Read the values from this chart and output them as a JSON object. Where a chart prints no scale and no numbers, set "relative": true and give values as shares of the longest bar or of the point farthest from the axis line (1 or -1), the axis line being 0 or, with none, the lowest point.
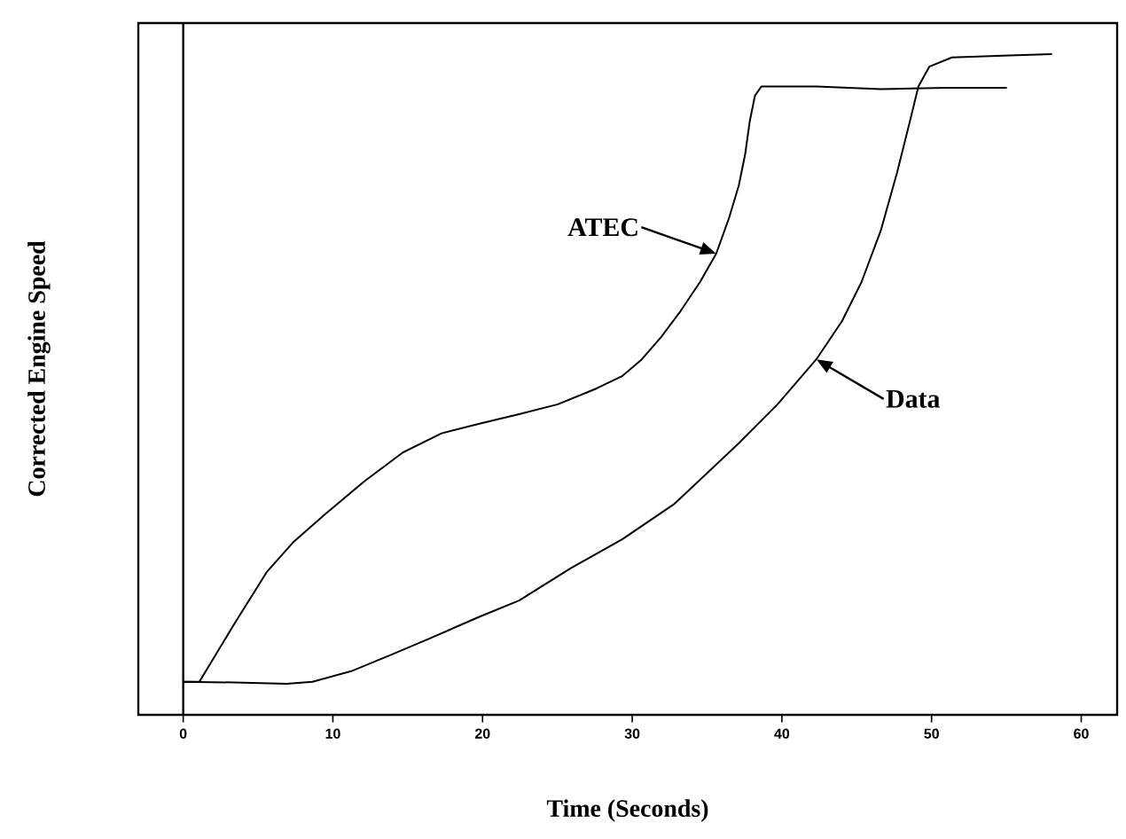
{
  "chart_data": {
    "type": "line",
    "xlabel": "Time (Seconds)",
    "ylabel": "Corrected Engine Speed",
    "relative": true,
    "xlim": [
      -3,
      62.4
    ],
    "xticks": [
      0,
      10,
      20,
      30,
      40,
      50,
      60
    ],
    "tick_labels": "x",
    "grid": false,
    "marker": "none",
    "line_style": "solid",
    "ref_lines": [
      {
        "axis": "x",
        "value": 0,
        "color": "#000000"
      }
    ],
    "series": [
      {
        "name": "ATEC",
        "color": "#000000",
        "x": [
          0,
          1.08,
          3.45,
          5.61,
          7.34,
          9.5,
          12.08,
          14.67,
          17.26,
          19.85,
          22.44,
          25.03,
          27.62,
          29.35,
          30.64,
          31.94,
          33.23,
          34.53,
          35.61,
          36.47,
          37.12,
          37.55,
          37.85,
          38.2,
          38.63,
          42.3,
          46.61,
          50.93,
          55.03
        ],
        "values": [
          0.05,
          0.05,
          0.139,
          0.217,
          0.261,
          0.304,
          0.353,
          0.397,
          0.426,
          0.441,
          0.455,
          0.47,
          0.494,
          0.513,
          0.538,
          0.572,
          0.611,
          0.655,
          0.698,
          0.752,
          0.801,
          0.849,
          0.898,
          0.937,
          0.951,
          0.951,
          0.947,
          0.949,
          0.949
        ]
      },
      {
        "name": "Data",
        "color": "#000000",
        "x": [
          0,
          3.45,
          6.91,
          8.63,
          11.22,
          13.81,
          16.4,
          19.85,
          22.44,
          25.9,
          29.35,
          32.8,
          37.12,
          39.71,
          42.3,
          44.02,
          45.32,
          46.61,
          47.69,
          48.55,
          49.12,
          49.85,
          51.36,
          55.24,
          58.05
        ],
        "values": [
          0.05,
          0.049,
          0.047,
          0.05,
          0.066,
          0.09,
          0.115,
          0.149,
          0.173,
          0.222,
          0.266,
          0.319,
          0.411,
          0.47,
          0.538,
          0.596,
          0.655,
          0.733,
          0.82,
          0.898,
          0.951,
          0.981,
          0.995,
          0.998,
          1
        ]
      }
    ]
  }
}
